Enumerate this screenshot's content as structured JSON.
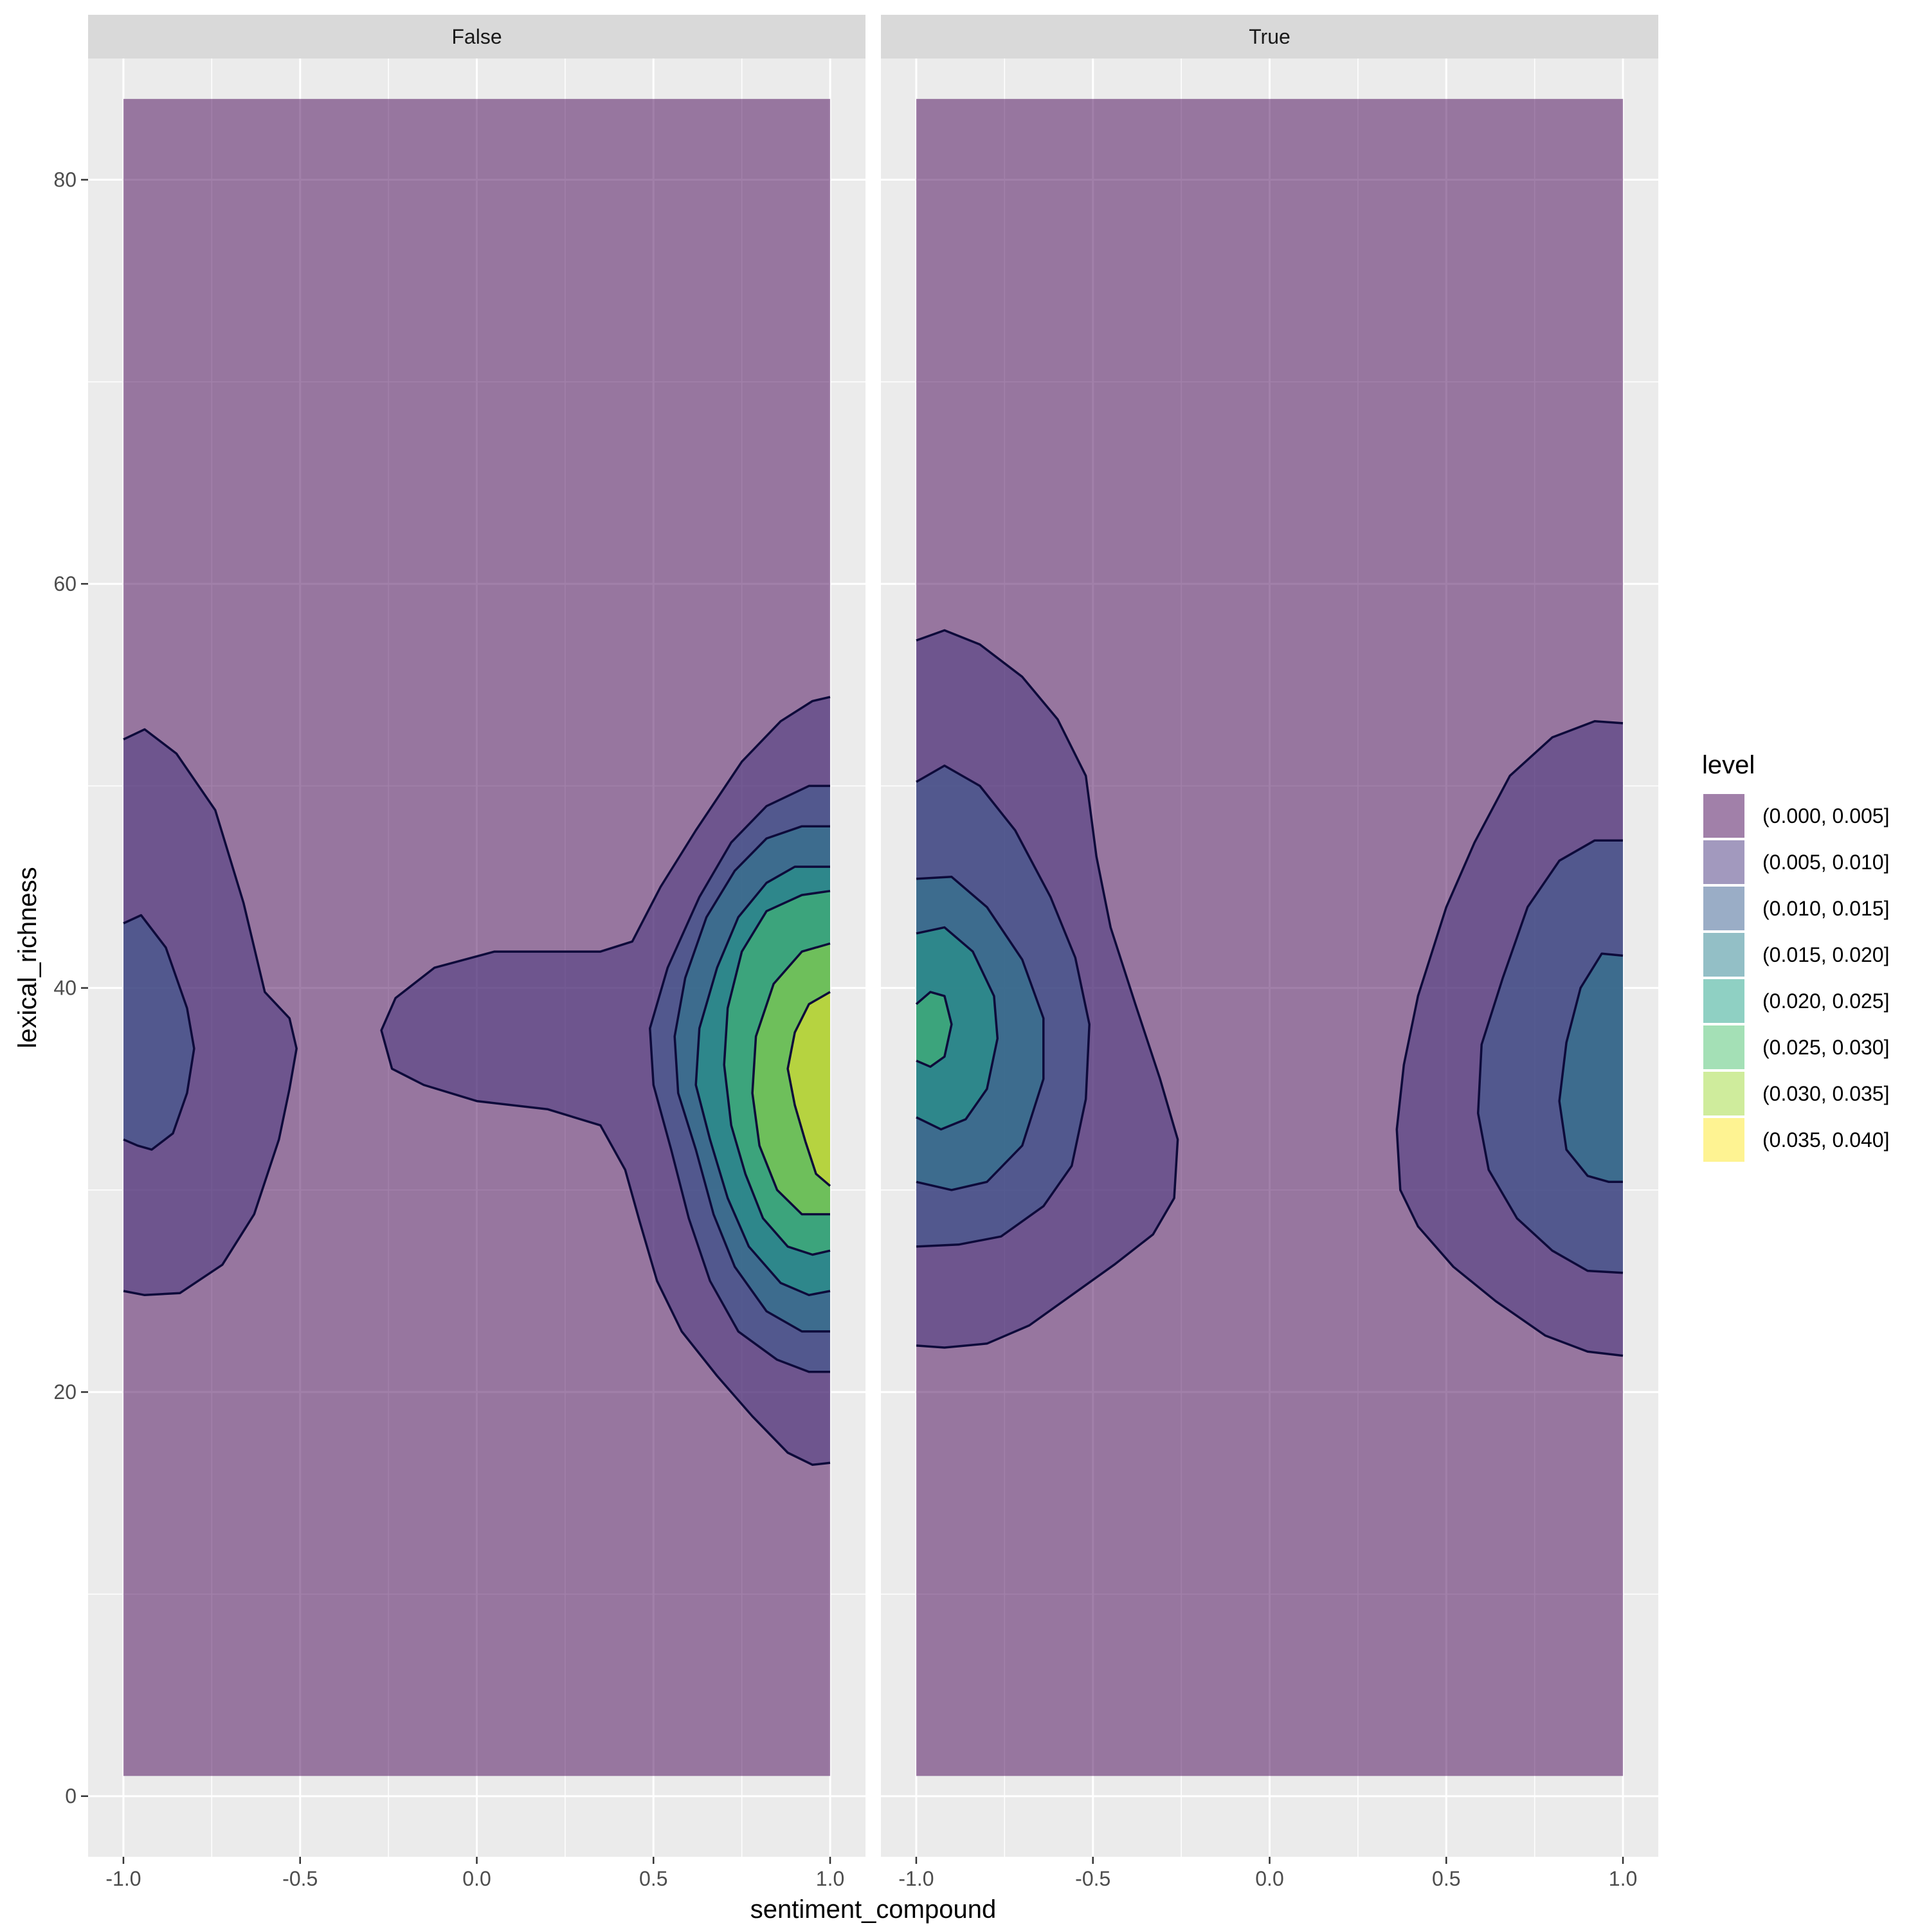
{
  "chart_data": {
    "type": "contour",
    "xlabel": "sentiment_compound",
    "ylabel": "lexical_richness",
    "xlim": [
      -1.1,
      1.1
    ],
    "ylim": [
      -3,
      86
    ],
    "x_ticks": [
      -1.0,
      -0.5,
      0.0,
      0.5,
      1.0
    ],
    "x_tick_labels": [
      "-1.0",
      "-0.5",
      "0.0",
      "0.5",
      "1.0"
    ],
    "y_ticks": [
      0,
      20,
      40,
      60,
      80
    ],
    "y_tick_labels": [
      "0",
      "20",
      "40",
      "60",
      "80"
    ],
    "grid": true,
    "legend": {
      "title": "level",
      "placement": "right",
      "items": [
        {
          "label": "(0.000, 0.005]",
          "color": "#440154"
        },
        {
          "label": "(0.005, 0.010]",
          "color": "#46337E"
        },
        {
          "label": "(0.010, 0.015]",
          "color": "#365C8D"
        },
        {
          "label": "(0.015, 0.020]",
          "color": "#277F8E"
        },
        {
          "label": "(0.020, 0.025]",
          "color": "#1FA187"
        },
        {
          "label": "(0.025, 0.030]",
          "color": "#4AC16D"
        },
        {
          "label": "(0.030, 0.035]",
          "color": "#A0DA39"
        },
        {
          "label": "(0.035, 0.040]",
          "color": "#FDE725"
        }
      ]
    },
    "fill_alpha": 0.5,
    "panels": [
      {
        "facet": "False",
        "density_extent": {
          "x": [
            -1.0,
            1.0
          ],
          "y": [
            1,
            84
          ]
        },
        "contours": [
          {
            "level": 1,
            "points": [
              [
                -1.0,
                52.3
              ],
              [
                -0.94,
                52.8
              ],
              [
                -0.85,
                51.6
              ],
              [
                -0.74,
                48.8
              ],
              [
                -0.66,
                44.2
              ],
              [
                -0.6,
                39.8
              ],
              [
                -0.53,
                38.5
              ],
              [
                -0.51,
                37
              ],
              [
                -0.53,
                35
              ],
              [
                -0.56,
                32.5
              ],
              [
                -0.63,
                28.8
              ],
              [
                -0.72,
                26.3
              ],
              [
                -0.84,
                24.9
              ],
              [
                -0.94,
                24.8
              ],
              [
                -1.0,
                25
              ]
            ]
          },
          {
            "level": 2,
            "points": [
              [
                -1.0,
                43.2
              ],
              [
                -0.95,
                43.6
              ],
              [
                -0.88,
                42
              ],
              [
                -0.82,
                39
              ],
              [
                -0.8,
                37
              ],
              [
                -0.82,
                34.8
              ],
              [
                -0.86,
                32.8
              ],
              [
                -0.92,
                32
              ],
              [
                -0.96,
                32.2
              ],
              [
                -1.0,
                32.5
              ]
            ]
          },
          {
            "level": 1,
            "points": [
              [
                1.0,
                54.4
              ],
              [
                0.95,
                54.2
              ],
              [
                0.86,
                53.2
              ],
              [
                0.75,
                51.2
              ],
              [
                0.62,
                47.8
              ],
              [
                0.52,
                45
              ],
              [
                0.44,
                42.3
              ],
              [
                0.35,
                41.8
              ],
              [
                0.22,
                41.8
              ],
              [
                0.05,
                41.8
              ],
              [
                -0.12,
                41
              ],
              [
                -0.23,
                39.5
              ],
              [
                -0.27,
                37.9
              ],
              [
                -0.24,
                36
              ],
              [
                -0.15,
                35.2
              ],
              [
                0.0,
                34.4
              ],
              [
                0.2,
                34
              ],
              [
                0.35,
                33.2
              ],
              [
                0.42,
                31
              ],
              [
                0.46,
                28.5
              ],
              [
                0.51,
                25.5
              ],
              [
                0.58,
                23
              ],
              [
                0.68,
                20.8
              ],
              [
                0.78,
                18.8
              ],
              [
                0.88,
                17
              ],
              [
                0.95,
                16.4
              ],
              [
                1.0,
                16.5
              ]
            ]
          },
          {
            "level": 2,
            "points": [
              [
                1.0,
                50
              ],
              [
                0.94,
                50
              ],
              [
                0.82,
                49
              ],
              [
                0.72,
                47.2
              ],
              [
                0.63,
                44.5
              ],
              [
                0.54,
                41
              ],
              [
                0.49,
                38
              ],
              [
                0.5,
                35.2
              ],
              [
                0.55,
                32
              ],
              [
                0.6,
                28.6
              ],
              [
                0.66,
                25.5
              ],
              [
                0.74,
                23
              ],
              [
                0.85,
                21.6
              ],
              [
                0.94,
                21
              ],
              [
                1.0,
                21
              ]
            ]
          },
          {
            "level": 3,
            "points": [
              [
                1.0,
                48
              ],
              [
                0.92,
                48
              ],
              [
                0.82,
                47.4
              ],
              [
                0.73,
                45.8
              ],
              [
                0.65,
                43.5
              ],
              [
                0.59,
                40.5
              ],
              [
                0.56,
                37.6
              ],
              [
                0.57,
                34.8
              ],
              [
                0.62,
                32
              ],
              [
                0.67,
                28.8
              ],
              [
                0.73,
                26.2
              ],
              [
                0.82,
                24
              ],
              [
                0.92,
                23
              ],
              [
                1.0,
                23
              ]
            ]
          },
          {
            "level": 4,
            "points": [
              [
                1.0,
                46
              ],
              [
                0.9,
                46
              ],
              [
                0.82,
                45.2
              ],
              [
                0.74,
                43.5
              ],
              [
                0.68,
                41
              ],
              [
                0.63,
                38
              ],
              [
                0.62,
                35.2
              ],
              [
                0.66,
                32.5
              ],
              [
                0.71,
                29.6
              ],
              [
                0.77,
                27.2
              ],
              [
                0.86,
                25.4
              ],
              [
                0.94,
                24.8
              ],
              [
                1.0,
                25
              ]
            ]
          },
          {
            "level": 5,
            "points": [
              [
                1.0,
                44.8
              ],
              [
                0.92,
                44.6
              ],
              [
                0.82,
                43.8
              ],
              [
                0.75,
                41.8
              ],
              [
                0.71,
                39
              ],
              [
                0.7,
                36.2
              ],
              [
                0.72,
                33.2
              ],
              [
                0.76,
                30.8
              ],
              [
                0.81,
                28.6
              ],
              [
                0.88,
                27.2
              ],
              [
                0.95,
                26.8
              ],
              [
                1.0,
                27
              ]
            ]
          },
          {
            "level": 6,
            "points": [
              [
                1.0,
                42.2
              ],
              [
                0.92,
                41.8
              ],
              [
                0.84,
                40.2
              ],
              [
                0.79,
                37.6
              ],
              [
                0.78,
                34.8
              ],
              [
                0.8,
                32.2
              ],
              [
                0.85,
                30
              ],
              [
                0.92,
                28.8
              ],
              [
                1.0,
                28.8
              ]
            ]
          },
          {
            "level": 7,
            "points": [
              [
                1.0,
                39.8
              ],
              [
                0.94,
                39.2
              ],
              [
                0.9,
                37.8
              ],
              [
                0.88,
                36
              ],
              [
                0.9,
                34.2
              ],
              [
                0.93,
                32.4
              ],
              [
                0.96,
                30.8
              ],
              [
                1.0,
                30.2
              ]
            ]
          }
        ]
      },
      {
        "facet": "True",
        "density_extent": {
          "x": [
            -1.0,
            1.0
          ],
          "y": [
            1,
            84
          ]
        },
        "contours": [
          {
            "level": 1,
            "points": [
              [
                -1.0,
                57.2
              ],
              [
                -0.92,
                57.7
              ],
              [
                -0.82,
                57
              ],
              [
                -0.7,
                55.4
              ],
              [
                -0.6,
                53.3
              ],
              [
                -0.52,
                50.5
              ],
              [
                -0.49,
                46.5
              ],
              [
                -0.45,
                43
              ],
              [
                -0.38,
                39.2
              ],
              [
                -0.31,
                35.5
              ],
              [
                -0.26,
                32.5
              ],
              [
                -0.27,
                29.6
              ],
              [
                -0.33,
                27.8
              ],
              [
                -0.44,
                26.3
              ],
              [
                -0.56,
                24.8
              ],
              [
                -0.68,
                23.3
              ],
              [
                -0.8,
                22.4
              ],
              [
                -0.92,
                22.2
              ],
              [
                -1.0,
                22.3
              ]
            ]
          },
          {
            "level": 2,
            "points": [
              [
                -1.0,
                50.2
              ],
              [
                -0.92,
                51
              ],
              [
                -0.82,
                50
              ],
              [
                -0.72,
                47.8
              ],
              [
                -0.62,
                44.5
              ],
              [
                -0.55,
                41.5
              ],
              [
                -0.51,
                38.2
              ],
              [
                -0.52,
                34.5
              ],
              [
                -0.56,
                31.2
              ],
              [
                -0.64,
                29.2
              ],
              [
                -0.76,
                27.7
              ],
              [
                -0.88,
                27.3
              ],
              [
                -1.0,
                27.2
              ]
            ]
          },
          {
            "level": 3,
            "points": [
              [
                -1.0,
                45.4
              ],
              [
                -0.9,
                45.5
              ],
              [
                -0.8,
                44
              ],
              [
                -0.7,
                41.4
              ],
              [
                -0.64,
                38.5
              ],
              [
                -0.64,
                35.5
              ],
              [
                -0.7,
                32.2
              ],
              [
                -0.8,
                30.4
              ],
              [
                -0.9,
                30
              ],
              [
                -1.0,
                30.4
              ]
            ]
          },
          {
            "level": 4,
            "points": [
              [
                -1.0,
                42.7
              ],
              [
                -0.92,
                43
              ],
              [
                -0.84,
                41.8
              ],
              [
                -0.78,
                39.6
              ],
              [
                -0.77,
                37.5
              ],
              [
                -0.8,
                35
              ],
              [
                -0.86,
                33.5
              ],
              [
                -0.93,
                33
              ],
              [
                -1.0,
                33.6
              ]
            ]
          },
          {
            "level": 5,
            "points": [
              [
                -1.0,
                39.2
              ],
              [
                -0.96,
                39.8
              ],
              [
                -0.92,
                39.6
              ],
              [
                -0.9,
                38.2
              ],
              [
                -0.92,
                36.6
              ],
              [
                -0.96,
                36.1
              ],
              [
                -1.0,
                36.4
              ]
            ]
          },
          {
            "level": 1,
            "points": [
              [
                1.0,
                53.1
              ],
              [
                0.92,
                53.2
              ],
              [
                0.8,
                52.4
              ],
              [
                0.68,
                50.5
              ],
              [
                0.58,
                47.2
              ],
              [
                0.5,
                44
              ],
              [
                0.42,
                39.6
              ],
              [
                0.38,
                36.2
              ],
              [
                0.36,
                33
              ],
              [
                0.37,
                30
              ],
              [
                0.42,
                28.2
              ],
              [
                0.52,
                26.2
              ],
              [
                0.64,
                24.5
              ],
              [
                0.78,
                22.8
              ],
              [
                0.9,
                22
              ],
              [
                1.0,
                21.8
              ]
            ]
          },
          {
            "level": 2,
            "points": [
              [
                1.0,
                47.3
              ],
              [
                0.92,
                47.3
              ],
              [
                0.82,
                46.3
              ],
              [
                0.73,
                44
              ],
              [
                0.66,
                40.5
              ],
              [
                0.6,
                37.2
              ],
              [
                0.59,
                33.8
              ],
              [
                0.62,
                31
              ],
              [
                0.7,
                28.6
              ],
              [
                0.8,
                27
              ],
              [
                0.9,
                26
              ],
              [
                1.0,
                25.9
              ]
            ]
          },
          {
            "level": 3,
            "points": [
              [
                1.0,
                41.6
              ],
              [
                0.94,
                41.7
              ],
              [
                0.88,
                40
              ],
              [
                0.84,
                37.3
              ],
              [
                0.82,
                34.4
              ],
              [
                0.84,
                32
              ],
              [
                0.9,
                30.7
              ],
              [
                0.96,
                30.4
              ],
              [
                1.0,
                30.4
              ]
            ]
          }
        ]
      }
    ]
  }
}
